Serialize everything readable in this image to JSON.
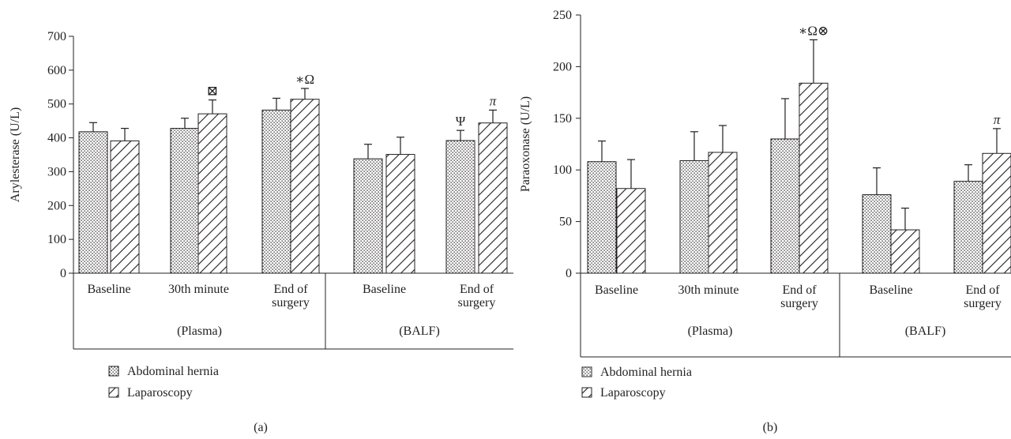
{
  "chart_data": [
    {
      "type": "bar",
      "panel_label": "(a)",
      "ylabel": "Arylesterase (U/L)",
      "ylim": [
        0,
        700
      ],
      "yticks": [
        "0",
        "100",
        "200",
        "300",
        "400",
        "500",
        "600",
        "700"
      ],
      "categories": [
        {
          "lines": [
            "Baseline"
          ],
          "group": "(Plasma)"
        },
        {
          "lines": [
            "30th minute"
          ],
          "group": "(Plasma)"
        },
        {
          "lines": [
            "End of",
            "surgery"
          ],
          "group": "(Plasma)"
        },
        {
          "lines": [
            "Baseline"
          ],
          "group": "(BALF)"
        },
        {
          "lines": [
            "End of",
            "surgery"
          ],
          "group": "(BALF)"
        }
      ],
      "groups": [
        "(Plasma)",
        "(BALF)"
      ],
      "series": [
        {
          "name": "Abdominal hernia",
          "pattern": "dots",
          "values": [
            418,
            428,
            482,
            338,
            392
          ],
          "errors": [
            27,
            30,
            35,
            43,
            30
          ],
          "annotations": [
            "",
            "",
            "",
            "",
            "Ψ"
          ]
        },
        {
          "name": "Laparoscopy",
          "pattern": "hatch",
          "values": [
            391,
            471,
            514,
            351,
            444
          ],
          "errors": [
            37,
            41,
            32,
            51,
            38
          ],
          "annotations": [
            "",
            "⊠",
            "∗Ω",
            "",
            "π"
          ]
        }
      ],
      "legend_position": "bottom-left",
      "grid": false
    },
    {
      "type": "bar",
      "panel_label": "(b)",
      "ylabel": "Paraoxonase (U/L)",
      "ylim": [
        0,
        250
      ],
      "yticks": [
        "0",
        "50",
        "100",
        "150",
        "200",
        "250"
      ],
      "categories": [
        {
          "lines": [
            "Baseline"
          ],
          "group": "(Plasma)"
        },
        {
          "lines": [
            "30th minute"
          ],
          "group": "(Plasma)"
        },
        {
          "lines": [
            "End of",
            "surgery"
          ],
          "group": "(Plasma)"
        },
        {
          "lines": [
            "Baseline"
          ],
          "group": "(BALF)"
        },
        {
          "lines": [
            "End of",
            "surgery"
          ],
          "group": "(BALF)"
        }
      ],
      "groups": [
        "(Plasma)",
        "(BALF)"
      ],
      "series": [
        {
          "name": "Abdominal hernia",
          "pattern": "dots",
          "values": [
            108,
            109,
            130,
            76,
            89
          ],
          "errors": [
            20,
            28,
            39,
            26,
            16
          ],
          "annotations": [
            "",
            "",
            "",
            "",
            ""
          ]
        },
        {
          "name": "Laparoscopy",
          "pattern": "hatch",
          "values": [
            82,
            117,
            184,
            42,
            116
          ],
          "errors": [
            28,
            26,
            42,
            21,
            24
          ],
          "annotations": [
            "",
            "",
            "∗Ω⊗",
            "",
            "π"
          ]
        }
      ],
      "legend_position": "bottom-left",
      "grid": false
    }
  ]
}
